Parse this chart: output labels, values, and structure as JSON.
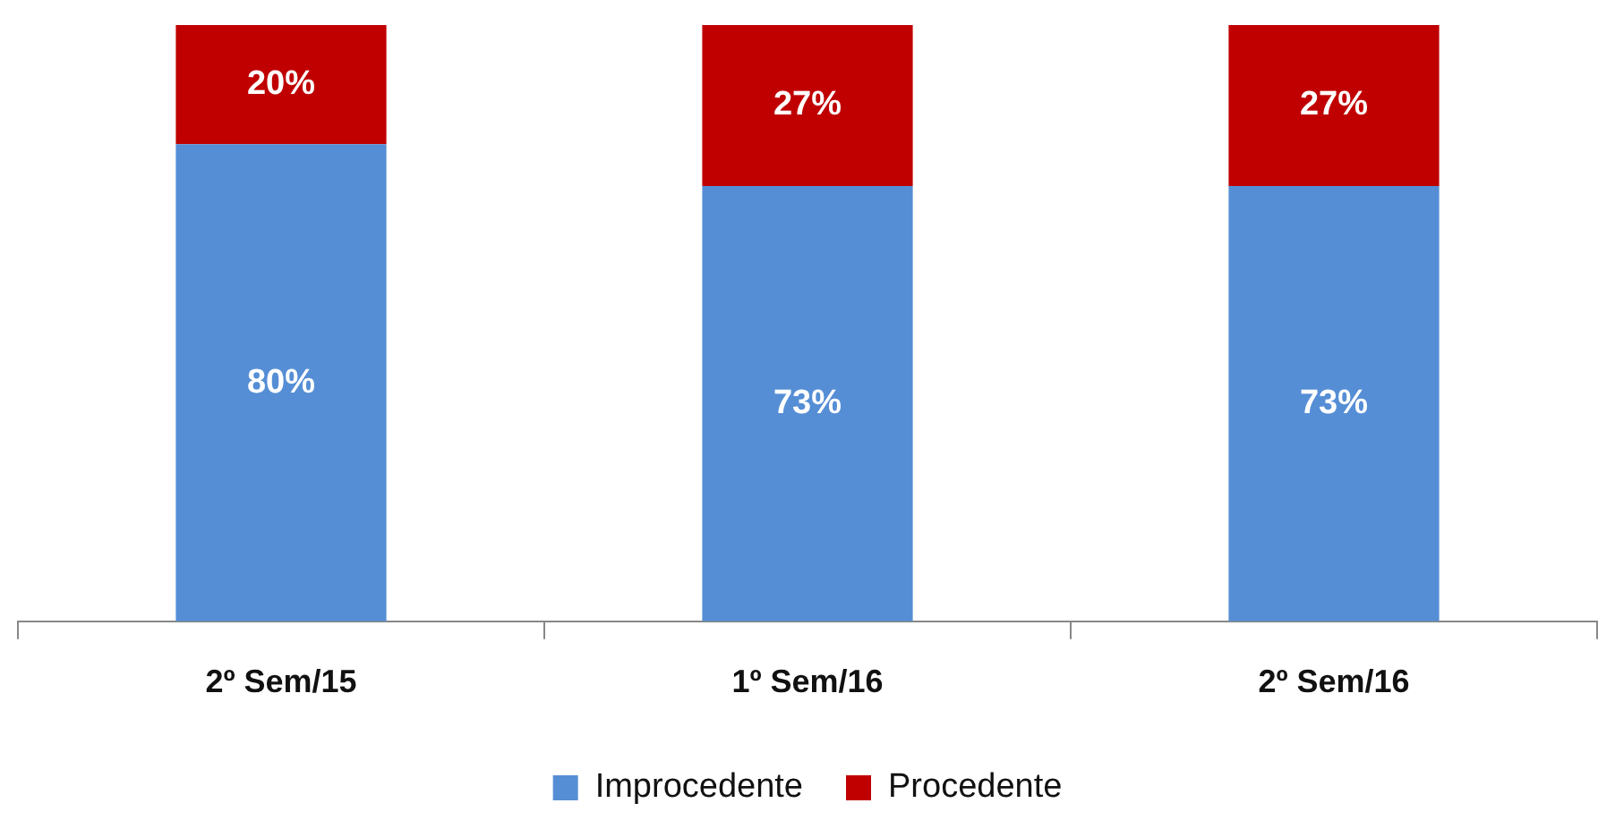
{
  "chart_data": {
    "type": "bar",
    "stacked": true,
    "categories": [
      "2º Sem/15",
      "1º Sem/16",
      "2º Sem/16"
    ],
    "ylim": [
      0,
      100
    ],
    "legend": "bottom",
    "grid": false,
    "tick_labels": "x",
    "series": [
      {
        "name": "Improcedente",
        "color": "#558ed5",
        "values": [
          80,
          73,
          73
        ],
        "value_labels": [
          "80%",
          "73%",
          "73%"
        ]
      },
      {
        "name": "Procedente",
        "color": "#c00000",
        "values": [
          20,
          27,
          27
        ],
        "value_labels": [
          "20%",
          "27%",
          "27%"
        ]
      }
    ]
  }
}
